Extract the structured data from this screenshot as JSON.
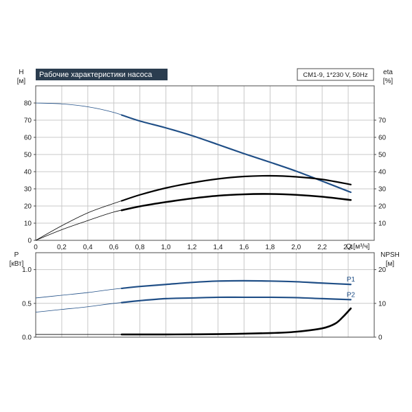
{
  "chart_data": {
    "type": "line",
    "title": "Рабочие характеристики насоса",
    "model": "CM1-9, 1*230 V, 50Hz",
    "colors": {
      "title_bg": "#2b3d4f",
      "title_fg": "#ffffff",
      "blue": "#1f4e86",
      "black": "#000000"
    },
    "top": {
      "left_axis": {
        "label": "H",
        "unit": "[м]",
        "ticks": [
          "0",
          "10",
          "20",
          "30",
          "40",
          "50",
          "60",
          "70",
          "80"
        ],
        "range": [
          0,
          90
        ]
      },
      "right_axis": {
        "label": "eta",
        "unit": "[%]",
        "ticks": [
          "10",
          "20",
          "30",
          "40",
          "50",
          "60",
          "70"
        ],
        "range": [
          0,
          90
        ]
      },
      "x_axis": {
        "unit_label": "Q [м³/ч]",
        "ticks": [
          "0",
          "0,2",
          "0,4",
          "0,6",
          "0,8",
          "1,0",
          "1,2",
          "1,4",
          "1,6",
          "1,8",
          "2,0",
          "2,2",
          "2,4"
        ],
        "range": [
          0,
          2.6
        ]
      },
      "series": [
        {
          "axis": "left",
          "color": "blue",
          "op_range": [
            0.66,
            2.42
          ],
          "x": [
            0,
            0.2,
            0.4,
            0.6,
            0.8,
            1.0,
            1.2,
            1.4,
            1.6,
            1.8,
            2.0,
            2.2,
            2.42
          ],
          "y": [
            80,
            79.5,
            77.8,
            74.5,
            69.5,
            65.5,
            61,
            55.8,
            50.5,
            45.5,
            40.3,
            34.5,
            28
          ]
        },
        {
          "axis": "right",
          "color": "black",
          "op_range": [
            0.66,
            2.42
          ],
          "x": [
            0,
            0.2,
            0.4,
            0.6,
            0.8,
            1.0,
            1.2,
            1.4,
            1.6,
            1.8,
            2.0,
            2.2,
            2.42
          ],
          "y": [
            0,
            8.5,
            16,
            21.5,
            26.5,
            30.5,
            33.5,
            35.8,
            37.2,
            37.6,
            37,
            35.5,
            32.5
          ]
        },
        {
          "axis": "left",
          "color": "black",
          "op_range": [
            0.66,
            2.42
          ],
          "bold": true,
          "x": [
            0,
            0.2,
            0.4,
            0.6,
            0.8,
            1.0,
            1.2,
            1.4,
            1.6,
            1.8,
            2.0,
            2.2,
            2.42
          ],
          "y": [
            0,
            6.2,
            11.5,
            16.5,
            19.8,
            22.3,
            24.4,
            26,
            26.8,
            27,
            26.5,
            25.4,
            23.5
          ]
        }
      ]
    },
    "bottom": {
      "left_axis": {
        "label": "P",
        "unit": "[кВт]",
        "ticks": [
          "0.0",
          "0.5",
          "1.0"
        ],
        "range": [
          0,
          1.25
        ]
      },
      "right_axis": {
        "label": "NPSH",
        "unit": "[м]",
        "ticks": [
          "0",
          "10",
          "20"
        ],
        "range": [
          0,
          25
        ]
      },
      "x_axis": {
        "range": [
          0,
          2.6
        ]
      },
      "series": [
        {
          "name": "P1",
          "axis": "left",
          "color": "blue",
          "op_range": [
            0.66,
            2.42
          ],
          "x": [
            0,
            0.2,
            0.4,
            0.6,
            0.8,
            1.0,
            1.2,
            1.4,
            1.6,
            1.8,
            2.0,
            2.2,
            2.42
          ],
          "y": [
            0.58,
            0.62,
            0.66,
            0.71,
            0.75,
            0.78,
            0.81,
            0.83,
            0.835,
            0.83,
            0.82,
            0.8,
            0.78
          ]
        },
        {
          "name": "P2",
          "axis": "left",
          "color": "blue",
          "op_range": [
            0.66,
            2.42
          ],
          "x": [
            0,
            0.2,
            0.4,
            0.6,
            0.8,
            1.0,
            1.2,
            1.4,
            1.6,
            1.8,
            2.0,
            2.2,
            2.42
          ],
          "y": [
            0.37,
            0.41,
            0.45,
            0.5,
            0.54,
            0.57,
            0.58,
            0.59,
            0.59,
            0.59,
            0.585,
            0.57,
            0.555
          ]
        },
        {
          "axis": "right",
          "color": "black",
          "op_range": [
            0.66,
            2.42
          ],
          "bold": true,
          "x": [
            0,
            0.66,
            1.0,
            1.4,
            1.8,
            2.0,
            2.2,
            2.3,
            2.36,
            2.42
          ],
          "y": [
            0.8,
            0.8,
            0.8,
            0.9,
            1.2,
            1.6,
            2.6,
            4.0,
            6.0,
            8.5
          ]
        }
      ]
    }
  }
}
